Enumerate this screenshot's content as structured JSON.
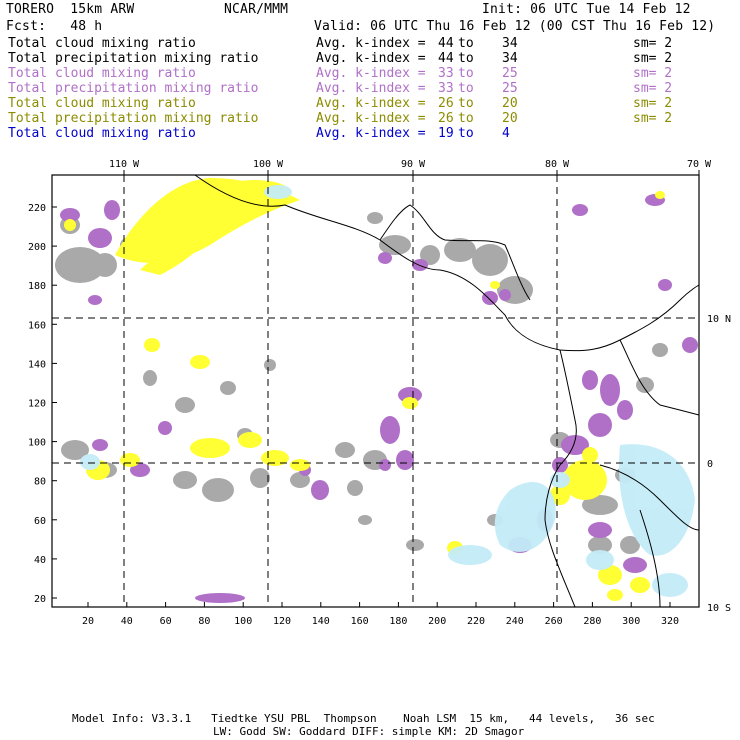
{
  "header": {
    "model": "TORERO  15km ARW",
    "center": "NCAR/MMM",
    "init": "Init: 06 UTC Tue 14 Feb 12",
    "fcst": "Fcst:   48 h",
    "valid": "Valid: 06 UTC Thu 16 Feb 12 (00 CST Thu 16 Feb 12)"
  },
  "legend": [
    {
      "field": "Total cloud mixing ratio",
      "kindex": "Avg. k-index = ",
      "from": "44",
      "to": "to",
      "upto": "34",
      "sm": "sm= 2",
      "color": "#000000"
    },
    {
      "field": "Total precipitation mixing ratio",
      "kindex": "Avg. k-index = ",
      "from": "44",
      "to": "to",
      "upto": "34",
      "sm": "sm= 2",
      "color": "#000000"
    },
    {
      "field": "Total cloud mixing ratio",
      "kindex": "Avg. k-index = ",
      "from": "33",
      "to": "to",
      "upto": "25",
      "sm": "sm= 2",
      "color": "#b070c8"
    },
    {
      "field": "Total precipitation mixing ratio",
      "kindex": "Avg. k-index = ",
      "from": "33",
      "to": "to",
      "upto": "25",
      "sm": "sm= 2",
      "color": "#b070c8"
    },
    {
      "field": "Total cloud mixing ratio",
      "kindex": "Avg. k-index = ",
      "from": "26",
      "to": "to",
      "upto": "20",
      "sm": "sm= 2",
      "color": "#8c8c00"
    },
    {
      "field": "Total precipitation mixing ratio",
      "kindex": "Avg. k-index = ",
      "from": "26",
      "to": "to",
      "upto": "20",
      "sm": "sm= 2",
      "color": "#8c8c00"
    },
    {
      "field": "Total cloud mixing ratio",
      "kindex": "Avg. k-index = ",
      "from": "19",
      "to": "to",
      "upto": "4",
      "sm": "",
      "color": "#0000cc"
    }
  ],
  "map": {
    "lon_labels": [
      "110 W",
      "100 W",
      "90 W",
      "80 W",
      "70 W"
    ],
    "lat_labels": [
      "10 N",
      "0",
      "10 S"
    ],
    "y_ticks": [
      "20",
      "40",
      "60",
      "80",
      "100",
      "120",
      "140",
      "160",
      "180",
      "200",
      "220"
    ],
    "x_ticks": [
      "20",
      "40",
      "60",
      "80",
      "100",
      "120",
      "140",
      "160",
      "180",
      "200",
      "220",
      "240",
      "260",
      "280",
      "300",
      "320"
    ],
    "colors": {
      "gray": "#a0a0a0",
      "purple": "#b070c8",
      "yellow": "#ffff33",
      "light_blue": "#c4ecf8",
      "coast": "#000000"
    }
  },
  "footer": {
    "line1": "Model Info: V3.3.1   Tiedtke YSU PBL  Thompson    Noah LSM  15 km,   44 levels,   36 sec",
    "line2": "LW: Godd SW: Goddard DIFF: simple KM: 2D Smagor"
  }
}
